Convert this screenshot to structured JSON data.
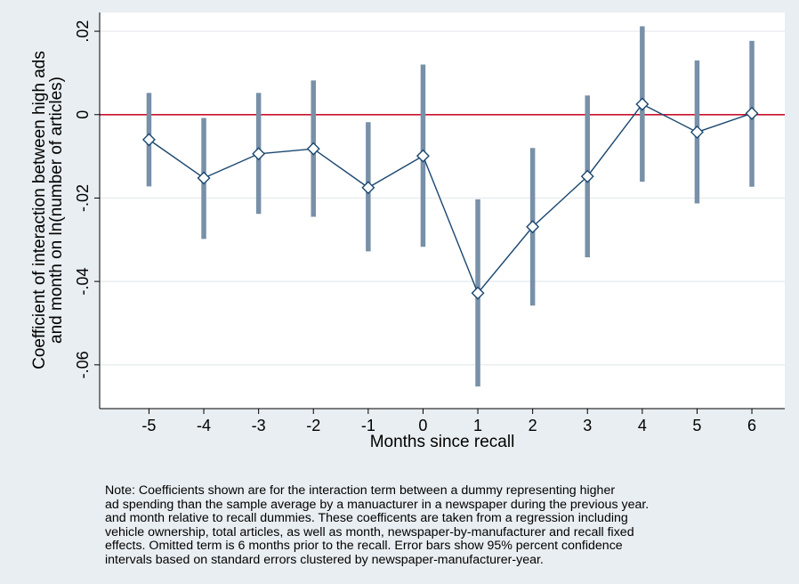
{
  "chart_data": {
    "type": "scatter",
    "title": "",
    "xlabel": "Months since recall",
    "ylabel_lines": [
      "Coefficient of interaction between high ads",
      "and month on ln(number of articles)"
    ],
    "x": [
      -5,
      -4,
      -3,
      -2,
      -1,
      0,
      1,
      2,
      3,
      4,
      5,
      6
    ],
    "xticks": [
      "-5",
      "-4",
      "-3",
      "-2",
      "-1",
      "0",
      "1",
      "2",
      "3",
      "4",
      "5",
      "6"
    ],
    "yticks": [
      {
        "value": 0.02,
        "label": ".02"
      },
      {
        "value": 0,
        "label": "0"
      },
      {
        "value": -0.02,
        "label": "-.02"
      },
      {
        "value": -0.04,
        "label": "-.04"
      },
      {
        "value": -0.06,
        "label": "-.06"
      }
    ],
    "ylim": [
      -0.0705,
      0.0245
    ],
    "xlim": [
      -5.9,
      6.6
    ],
    "reference_line": {
      "y": 0,
      "color": "#c8102e"
    },
    "series": [
      {
        "values": [
          -0.006,
          -0.0152,
          -0.0094,
          -0.0082,
          -0.0175,
          -0.0099,
          -0.0428,
          -0.0269,
          -0.0148,
          0.0025,
          -0.0042,
          0.0003
        ],
        "ci_low": [
          -0.0172,
          -0.0298,
          -0.0238,
          -0.0245,
          -0.0328,
          -0.0317,
          -0.0652,
          -0.0458,
          -0.0342,
          -0.0161,
          -0.0213,
          -0.0173
        ],
        "ci_high": [
          0.0052,
          -0.0008,
          0.0052,
          0.0082,
          -0.0018,
          0.012,
          -0.0203,
          -0.008,
          0.0046,
          0.0212,
          0.013,
          0.0177
        ],
        "line_color": "#1a476f",
        "errorbar_color": "#7890a8"
      }
    ],
    "grid": true
  },
  "note": "Note: Coefficients shown are for the interaction term between a dummy representing higher\nad spending than the sample average by a manuacturer in a newspaper during the previous year.\nand month relative to recall dummies. These coefficents are taken from a regression including\nvehicle ownership, total articles, as well as month, newspaper-by-manufacturer and recall fixed\neffects. Omitted term is 6 months prior to the recall. Error bars show 95% percent confidence\nintervals based on standard errors clustered by newspaper-manufacturer-year."
}
